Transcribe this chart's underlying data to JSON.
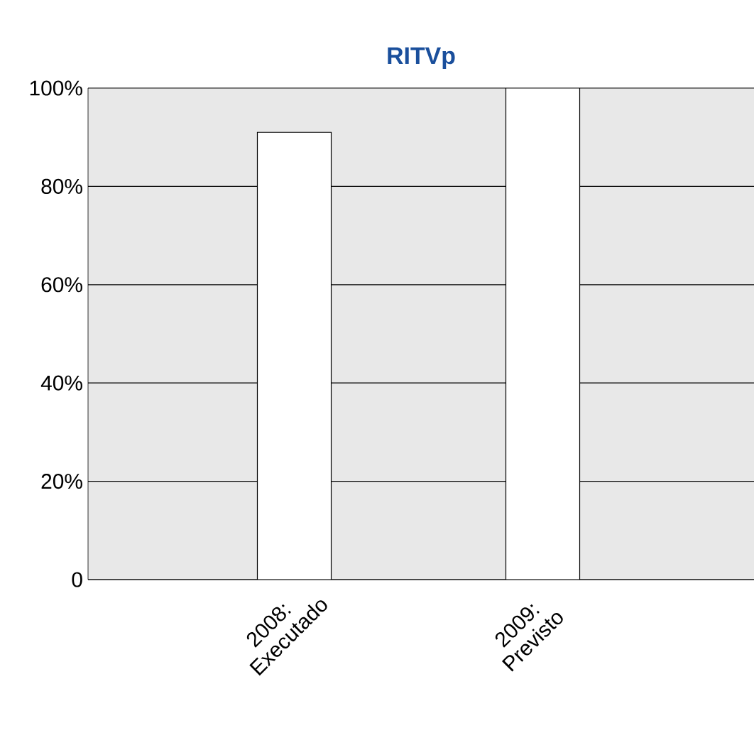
{
  "chart_data": {
    "type": "bar",
    "title": "RITVp",
    "categories": [
      "2008: Executado",
      "2009: Previsto"
    ],
    "values": [
      91,
      100
    ],
    "color": "#ffffff",
    "ylim": [
      0,
      100
    ],
    "yticks": [
      0,
      {
        "value": 20,
        "label": "20%"
      },
      {
        "value": 40,
        "label": "40%"
      },
      {
        "value": 60,
        "label": "60%"
      },
      {
        "value": 80,
        "label": "80%"
      },
      {
        "value": 100,
        "label": "100%"
      }
    ],
    "grid": "y"
  }
}
